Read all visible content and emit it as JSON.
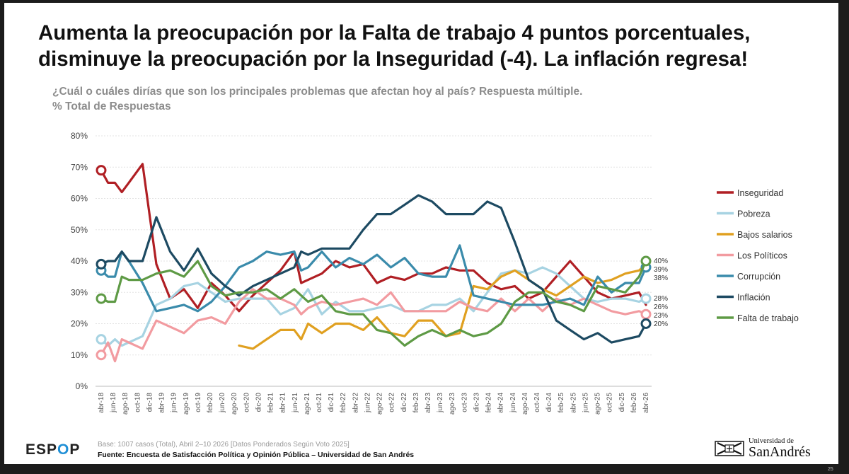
{
  "title": "Aumenta la preocupación por la Falta de trabajo 4 puntos porcentuales, disminuye la preocupación por la Inseguridad (-4). La inflación regresa!",
  "subtitle_line1": "¿Cuál o cuáles dirías que son los principales problemas que afectan hoy al país? Respuesta múltiple.",
  "subtitle_line2": "% Total de Respuestas",
  "footer": {
    "base": "Base: 1007 casos (Total), Abril 2–10 2026 [Datos Ponderados Según Voto 2025]",
    "source": "Fuente: Encuesta de Satisfacción Política y Opinión Pública – Universidad de San Andrés"
  },
  "logos": {
    "espop_pre": "ESP",
    "espop_o": "O",
    "espop_post": "P",
    "uni_top": "Universidad de",
    "uni_main": "SanAndrés"
  },
  "page_number": "25",
  "chart_data": {
    "type": "line",
    "ylim": [
      0,
      80
    ],
    "yticks": [
      0,
      10,
      20,
      30,
      40,
      50,
      60,
      70,
      80
    ],
    "ytick_labels": [
      "0%",
      "10%",
      "20%",
      "30%",
      "40%",
      "50%",
      "60%",
      "70%",
      "80%"
    ],
    "grid": true,
    "legend_position": "right",
    "x_labels": [
      "abr-18",
      "jun-18",
      "ago-18",
      "oct-18",
      "dic-18",
      "abr-19",
      "jun-19",
      "ago-19",
      "oct-19",
      "feb-20",
      "jun-20",
      "ago-20",
      "oct-20",
      "dic-20",
      "feb-21",
      "abr-21",
      "jun-21",
      "ago-21",
      "oct-21",
      "dic-21",
      "feb-22",
      "abr-22",
      "jun-22",
      "ago-22",
      "oct-22",
      "dic-22",
      "feb-23",
      "abr-23",
      "jun-23",
      "ago-23",
      "oct-23",
      "dic-23",
      "feb-24",
      "abr-24",
      "jun-24",
      "ago-24",
      "oct-24",
      "dic-24",
      "feb-25",
      "abr-25",
      "jun-25",
      "ago-25",
      "oct-25",
      "dic-25",
      "feb-26",
      "abr-26"
    ],
    "series": [
      {
        "name": "Inseguridad",
        "color": "#b01f24",
        "end_label": "26%",
        "start_marker": true,
        "end_marker": false,
        "points": [
          [
            0,
            69
          ],
          [
            0.5,
            65
          ],
          [
            1,
            65
          ],
          [
            1.5,
            62
          ],
          [
            2,
            65
          ],
          [
            3,
            71
          ],
          [
            4,
            39
          ],
          [
            5,
            28
          ],
          [
            6,
            31
          ],
          [
            7,
            25
          ],
          [
            8,
            33
          ],
          [
            9,
            29
          ],
          [
            10,
            24
          ],
          [
            11,
            29
          ],
          [
            12,
            33
          ],
          [
            13,
            37
          ],
          [
            14,
            43
          ],
          [
            14.5,
            33
          ],
          [
            15,
            34
          ],
          [
            16,
            36
          ],
          [
            17,
            40
          ],
          [
            18,
            38
          ],
          [
            19,
            39
          ],
          [
            20,
            33
          ],
          [
            21,
            35
          ],
          [
            22,
            34
          ],
          [
            23,
            36
          ],
          [
            24,
            36
          ],
          [
            25,
            38
          ],
          [
            26,
            37
          ],
          [
            27,
            37
          ],
          [
            28,
            33
          ],
          [
            29,
            31
          ],
          [
            30,
            32
          ],
          [
            31,
            28
          ],
          [
            32,
            30
          ],
          [
            33,
            35
          ],
          [
            34,
            40
          ],
          [
            35,
            35
          ],
          [
            36,
            30
          ],
          [
            37,
            28
          ],
          [
            38,
            29
          ],
          [
            39,
            30
          ],
          [
            39.5,
            26
          ]
        ]
      },
      {
        "name": "Pobreza",
        "color": "#a7d3e2",
        "end_label": "28%",
        "start_marker": true,
        "end_marker": true,
        "points": [
          [
            0,
            15
          ],
          [
            0.5,
            13
          ],
          [
            1,
            15
          ],
          [
            1.5,
            13
          ],
          [
            2,
            14
          ],
          [
            3,
            16
          ],
          [
            4,
            26
          ],
          [
            5,
            28
          ],
          [
            6,
            32
          ],
          [
            7,
            33
          ],
          [
            8,
            30
          ],
          [
            9,
            27
          ],
          [
            10,
            28
          ],
          [
            11,
            28
          ],
          [
            12,
            28
          ],
          [
            13,
            23
          ],
          [
            14,
            25
          ],
          [
            14.5,
            28
          ],
          [
            15,
            31
          ],
          [
            16,
            23
          ],
          [
            17,
            27
          ],
          [
            18,
            24
          ],
          [
            19,
            24
          ],
          [
            20,
            25
          ],
          [
            21,
            26
          ],
          [
            22,
            24
          ],
          [
            23,
            24
          ],
          [
            24,
            26
          ],
          [
            25,
            26
          ],
          [
            26,
            28
          ],
          [
            27,
            24
          ],
          [
            28,
            30
          ],
          [
            29,
            36
          ],
          [
            30,
            37
          ],
          [
            31,
            36
          ],
          [
            32,
            38
          ],
          [
            33,
            36
          ],
          [
            34,
            32
          ],
          [
            35,
            28
          ],
          [
            36,
            27
          ],
          [
            37,
            28
          ],
          [
            38,
            28
          ],
          [
            39,
            27
          ],
          [
            39.5,
            28
          ]
        ]
      },
      {
        "name": "Bajos salarios",
        "color": "#e0a020",
        "end_label": "39%",
        "start_marker": false,
        "end_marker": false,
        "points": [
          [
            10,
            13
          ],
          [
            11,
            12
          ],
          [
            12,
            15
          ],
          [
            13,
            18
          ],
          [
            14,
            18
          ],
          [
            14.5,
            15
          ],
          [
            15,
            20
          ],
          [
            16,
            17
          ],
          [
            17,
            20
          ],
          [
            18,
            20
          ],
          [
            19,
            18
          ],
          [
            20,
            22
          ],
          [
            21,
            17
          ],
          [
            22,
            16
          ],
          [
            23,
            21
          ],
          [
            24,
            21
          ],
          [
            25,
            16
          ],
          [
            26,
            17
          ],
          [
            27,
            32
          ],
          [
            28,
            31
          ],
          [
            29,
            35
          ],
          [
            30,
            37
          ],
          [
            31,
            34
          ],
          [
            32,
            31
          ],
          [
            33,
            29
          ],
          [
            34,
            32
          ],
          [
            35,
            35
          ],
          [
            36,
            33
          ],
          [
            37,
            34
          ],
          [
            38,
            36
          ],
          [
            39,
            37
          ],
          [
            39.5,
            39
          ]
        ]
      },
      {
        "name": "Los Políticos",
        "color": "#f29ba0",
        "end_label": "23%",
        "start_marker": true,
        "end_marker": true,
        "points": [
          [
            0,
            10
          ],
          [
            0.5,
            14
          ],
          [
            1,
            8
          ],
          [
            1.5,
            15
          ],
          [
            2,
            14
          ],
          [
            3,
            12
          ],
          [
            4,
            21
          ],
          [
            5,
            19
          ],
          [
            6,
            17
          ],
          [
            7,
            21
          ],
          [
            8,
            22
          ],
          [
            9,
            20
          ],
          [
            10,
            27
          ],
          [
            11,
            31
          ],
          [
            12,
            28
          ],
          [
            13,
            28
          ],
          [
            14,
            26
          ],
          [
            14.5,
            23
          ],
          [
            15,
            25
          ],
          [
            16,
            27
          ],
          [
            17,
            26
          ],
          [
            18,
            27
          ],
          [
            19,
            28
          ],
          [
            20,
            26
          ],
          [
            21,
            30
          ],
          [
            22,
            24
          ],
          [
            23,
            24
          ],
          [
            24,
            24
          ],
          [
            25,
            24
          ],
          [
            26,
            27
          ],
          [
            27,
            25
          ],
          [
            28,
            24
          ],
          [
            29,
            28
          ],
          [
            30,
            24
          ],
          [
            31,
            28
          ],
          [
            32,
            24
          ],
          [
            33,
            28
          ],
          [
            34,
            26
          ],
          [
            35,
            28
          ],
          [
            36,
            26
          ],
          [
            37,
            24
          ],
          [
            38,
            23
          ],
          [
            39,
            24
          ],
          [
            39.5,
            23
          ]
        ]
      },
      {
        "name": "Corrupción",
        "color": "#3a8bab",
        "end_label": "38%",
        "start_marker": true,
        "end_marker": true,
        "points": [
          [
            0,
            37
          ],
          [
            0.5,
            35
          ],
          [
            1,
            35
          ],
          [
            1.5,
            43
          ],
          [
            2,
            40
          ],
          [
            3,
            33
          ],
          [
            4,
            24
          ],
          [
            5,
            25
          ],
          [
            6,
            26
          ],
          [
            7,
            24
          ],
          [
            8,
            27
          ],
          [
            9,
            32
          ],
          [
            10,
            38
          ],
          [
            11,
            40
          ],
          [
            12,
            43
          ],
          [
            13,
            42
          ],
          [
            14,
            43
          ],
          [
            14.5,
            37
          ],
          [
            15,
            38
          ],
          [
            16,
            43
          ],
          [
            17,
            38
          ],
          [
            18,
            41
          ],
          [
            19,
            39
          ],
          [
            20,
            42
          ],
          [
            21,
            38
          ],
          [
            22,
            41
          ],
          [
            23,
            36
          ],
          [
            24,
            35
          ],
          [
            25,
            35
          ],
          [
            26,
            45
          ],
          [
            27,
            29
          ],
          [
            28,
            28
          ],
          [
            29,
            27
          ],
          [
            30,
            26
          ],
          [
            31,
            26
          ],
          [
            32,
            26
          ],
          [
            33,
            27
          ],
          [
            34,
            28
          ],
          [
            35,
            26
          ],
          [
            36,
            35
          ],
          [
            37,
            30
          ],
          [
            38,
            33
          ],
          [
            39,
            33
          ],
          [
            39.5,
            38
          ]
        ]
      },
      {
        "name": "Inflación",
        "color": "#1d4a62",
        "end_label": "20%",
        "start_marker": true,
        "end_marker": true,
        "points": [
          [
            0,
            39
          ],
          [
            0.5,
            40
          ],
          [
            1,
            40
          ],
          [
            1.5,
            43
          ],
          [
            2,
            40
          ],
          [
            3,
            40
          ],
          [
            4,
            54
          ],
          [
            5,
            43
          ],
          [
            6,
            37
          ],
          [
            7,
            44
          ],
          [
            8,
            36
          ],
          [
            9,
            32
          ],
          [
            10,
            29
          ],
          [
            11,
            32
          ],
          [
            12,
            34
          ],
          [
            13,
            36
          ],
          [
            14,
            38
          ],
          [
            14.5,
            43
          ],
          [
            15,
            42
          ],
          [
            16,
            44
          ],
          [
            17,
            44
          ],
          [
            18,
            44
          ],
          [
            19,
            50
          ],
          [
            20,
            55
          ],
          [
            21,
            55
          ],
          [
            22,
            58
          ],
          [
            23,
            61
          ],
          [
            24,
            59
          ],
          [
            25,
            55
          ],
          [
            26,
            55
          ],
          [
            27,
            55
          ],
          [
            28,
            59
          ],
          [
            29,
            57
          ],
          [
            30,
            46
          ],
          [
            31,
            34
          ],
          [
            32,
            31
          ],
          [
            33,
            21
          ],
          [
            34,
            18
          ],
          [
            35,
            15
          ],
          [
            36,
            17
          ],
          [
            37,
            14
          ],
          [
            38,
            15
          ],
          [
            39,
            16
          ],
          [
            39.5,
            20
          ]
        ]
      },
      {
        "name": "Falta de trabajo",
        "color": "#5e9a45",
        "end_label": "40%",
        "start_marker": true,
        "end_marker": true,
        "points": [
          [
            0,
            28
          ],
          [
            0.5,
            27
          ],
          [
            1,
            27
          ],
          [
            1.5,
            35
          ],
          [
            2,
            34
          ],
          [
            3,
            34
          ],
          [
            4,
            36
          ],
          [
            5,
            37
          ],
          [
            6,
            35
          ],
          [
            7,
            40
          ],
          [
            8,
            32
          ],
          [
            9,
            29
          ],
          [
            10,
            30
          ],
          [
            11,
            30
          ],
          [
            12,
            31
          ],
          [
            13,
            28
          ],
          [
            14,
            31
          ],
          [
            14.5,
            29
          ],
          [
            15,
            27
          ],
          [
            16,
            29
          ],
          [
            17,
            24
          ],
          [
            18,
            23
          ],
          [
            19,
            23
          ],
          [
            20,
            18
          ],
          [
            21,
            17
          ],
          [
            22,
            13
          ],
          [
            23,
            16
          ],
          [
            24,
            18
          ],
          [
            25,
            16
          ],
          [
            26,
            18
          ],
          [
            27,
            16
          ],
          [
            28,
            17
          ],
          [
            29,
            20
          ],
          [
            30,
            27
          ],
          [
            31,
            30
          ],
          [
            32,
            30
          ],
          [
            33,
            27
          ],
          [
            34,
            26
          ],
          [
            35,
            24
          ],
          [
            36,
            32
          ],
          [
            37,
            31
          ],
          [
            38,
            30
          ],
          [
            39,
            35
          ],
          [
            39.5,
            40
          ]
        ]
      }
    ]
  }
}
